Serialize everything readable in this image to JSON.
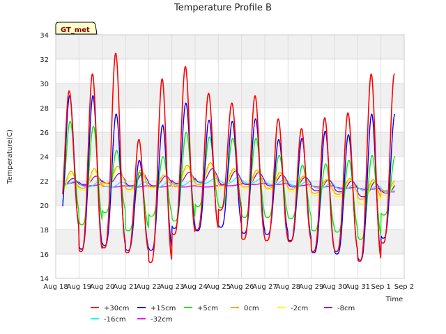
{
  "chart_data": {
    "type": "line",
    "title": "Temperature Profile B",
    "xlabel": "Time",
    "ylabel": "Temperature(C)",
    "badge": "GT_met",
    "ylim": [
      14,
      34
    ],
    "yticks": [
      14,
      16,
      18,
      20,
      22,
      24,
      26,
      28,
      30,
      32,
      34
    ],
    "xlim": [
      "2023-08-18",
      "2023-09-02"
    ],
    "xtick_labels": [
      "Aug 18",
      "Aug 19",
      "Aug 20",
      "Aug 21",
      "Aug 22",
      "Aug 23",
      "Aug 24",
      "Aug 25",
      "Aug 26",
      "Aug 27",
      "Aug 28",
      "Aug 29",
      "Aug 30",
      "Aug 31",
      "Sep 1",
      "Sep 2"
    ],
    "grid": true,
    "legend_position": "bottom",
    "series": [
      {
        "name": "+30cm",
        "color": "#ff0000",
        "x": [
          "2023-08-18",
          "2023-08-19",
          "2023-08-20",
          "2023-08-21",
          "2023-08-22",
          "2023-08-23",
          "2023-08-24",
          "2023-08-25",
          "2023-08-26",
          "2023-08-27",
          "2023-08-28",
          "2023-08-29",
          "2023-08-30",
          "2023-08-31",
          "2023-09-01"
        ],
        "min": [
          18.3,
          16.2,
          16.5,
          16.1,
          15.3,
          17.6,
          18.0,
          19.6,
          17.2,
          17.1,
          17.0,
          16.2,
          16.2,
          15.4,
          16.9
        ],
        "max": [
          29.4,
          30.8,
          32.5,
          25.4,
          30.4,
          31.4,
          29.2,
          28.4,
          29.0,
          27.1,
          26.3,
          27.2,
          27.6,
          30.8,
          30.8
        ]
      },
      {
        "name": "+15cm",
        "color": "#0000ff",
        "x": [
          "2023-08-18",
          "2023-08-19",
          "2023-08-20",
          "2023-08-21",
          "2023-08-22",
          "2023-08-23",
          "2023-08-24",
          "2023-08-25",
          "2023-08-26",
          "2023-08-27",
          "2023-08-28",
          "2023-08-29",
          "2023-08-30",
          "2023-08-31",
          "2023-09-01"
        ],
        "min": [
          17.9,
          16.4,
          16.7,
          16.3,
          16.3,
          18.1,
          17.9,
          18.2,
          17.7,
          17.6,
          17.1,
          16.1,
          16.0,
          15.5,
          17.3
        ],
        "max": [
          29.0,
          29.0,
          27.5,
          23.7,
          26.6,
          28.4,
          27.0,
          26.9,
          27.1,
          25.4,
          25.5,
          26.1,
          25.8,
          27.5,
          27.5
        ]
      },
      {
        "name": "+5cm",
        "color": "#00ee00",
        "x": [
          "2023-08-18",
          "2023-08-19",
          "2023-08-20",
          "2023-08-21",
          "2023-08-22",
          "2023-08-23",
          "2023-08-24",
          "2023-08-25",
          "2023-08-26",
          "2023-08-27",
          "2023-08-28",
          "2023-08-29",
          "2023-08-30",
          "2023-08-31",
          "2023-09-01"
        ],
        "min": [
          19.2,
          18.4,
          19.4,
          17.9,
          19.1,
          18.7,
          19.9,
          19.8,
          19.0,
          19.0,
          18.9,
          17.9,
          17.8,
          17.2,
          19.2
        ],
        "max": [
          26.9,
          26.5,
          24.5,
          22.7,
          24.0,
          26.0,
          25.6,
          25.5,
          25.5,
          24.1,
          23.3,
          23.4,
          23.7,
          24.1,
          24.1
        ]
      },
      {
        "name": "0cm",
        "color": "#ffa500",
        "x": [
          "2023-08-18",
          "2023-08-19",
          "2023-08-20",
          "2023-08-21",
          "2023-08-22",
          "2023-08-23",
          "2023-08-24",
          "2023-08-25",
          "2023-08-26",
          "2023-08-27",
          "2023-08-28",
          "2023-08-29",
          "2023-08-30",
          "2023-08-31",
          "2023-09-01"
        ],
        "min": [
          21.3,
          21.4,
          21.8,
          21.3,
          21.5,
          21.7,
          21.7,
          21.6,
          21.5,
          21.4,
          21.3,
          21.0,
          20.9,
          20.5,
          21.2
        ],
        "max": [
          22.8,
          23.0,
          23.2,
          22.9,
          22.5,
          23.3,
          23.5,
          23.0,
          22.9,
          22.7,
          22.4,
          22.1,
          22.2,
          22.1,
          22.1
        ]
      },
      {
        "name": "-2cm",
        "color": "#ffff00",
        "x": [
          "2023-08-18",
          "2023-08-19",
          "2023-08-20",
          "2023-08-21",
          "2023-08-22",
          "2023-08-23",
          "2023-08-24",
          "2023-08-25",
          "2023-08-26",
          "2023-08-27",
          "2023-08-28",
          "2023-08-29",
          "2023-08-30",
          "2023-08-31",
          "2023-09-01"
        ],
        "min": [
          21.1,
          21.2,
          21.6,
          21.2,
          21.4,
          21.5,
          21.6,
          21.4,
          21.4,
          21.3,
          21.1,
          20.8,
          20.7,
          20.1,
          20.8
        ],
        "max": [
          22.6,
          22.8,
          23.2,
          22.9,
          22.5,
          23.1,
          23.4,
          22.9,
          22.8,
          22.6,
          22.4,
          22.1,
          22.1,
          22.0,
          22.0
        ]
      },
      {
        "name": "-8cm",
        "color": "#9400d3",
        "x": [
          "2023-08-18",
          "2023-08-19",
          "2023-08-20",
          "2023-08-21",
          "2023-08-22",
          "2023-08-23",
          "2023-08-24",
          "2023-08-25",
          "2023-08-26",
          "2023-08-27",
          "2023-08-28",
          "2023-08-29",
          "2023-08-30",
          "2023-08-31",
          "2023-09-01"
        ],
        "min": [
          21.6,
          21.7,
          21.8,
          21.6,
          21.6,
          21.8,
          21.9,
          21.7,
          21.7,
          21.6,
          21.5,
          21.2,
          21.1,
          20.7,
          21.0
        ],
        "max": [
          22.2,
          22.4,
          22.6,
          22.6,
          22.4,
          22.7,
          23.0,
          22.8,
          22.7,
          22.5,
          22.3,
          22.1,
          22.0,
          21.9,
          21.9
        ]
      },
      {
        "name": "-16cm",
        "color": "#00ffff",
        "x": [
          "2023-08-18",
          "2023-08-19",
          "2023-08-20",
          "2023-08-21",
          "2023-08-22",
          "2023-08-23",
          "2023-08-24",
          "2023-08-25",
          "2023-08-26",
          "2023-08-27",
          "2023-08-28",
          "2023-08-29",
          "2023-08-30",
          "2023-08-31",
          "2023-09-01"
        ],
        "min": [
          21.7,
          21.5,
          21.5,
          21.5,
          21.5,
          21.6,
          21.8,
          21.8,
          21.8,
          21.7,
          21.6,
          21.4,
          21.3,
          21.2,
          21.1
        ],
        "max": [
          22.0,
          21.9,
          21.9,
          21.9,
          21.9,
          22.0,
          22.2,
          22.3,
          22.2,
          22.1,
          22.0,
          21.8,
          21.7,
          21.6,
          21.5
        ]
      },
      {
        "name": "-32cm",
        "color": "#ff00ff",
        "x": [
          "2023-08-18",
          "2023-08-19",
          "2023-08-20",
          "2023-08-21",
          "2023-08-22",
          "2023-08-23",
          "2023-08-24",
          "2023-08-25",
          "2023-08-26",
          "2023-08-27",
          "2023-08-28",
          "2023-08-29",
          "2023-08-30",
          "2023-08-31",
          "2023-09-01"
        ],
        "min": [
          21.8,
          21.6,
          21.5,
          21.5,
          21.5,
          21.5,
          21.5,
          21.6,
          21.7,
          21.7,
          21.6,
          21.5,
          21.4,
          21.3,
          21.1
        ],
        "max": [
          21.9,
          21.7,
          21.6,
          21.6,
          21.6,
          21.6,
          21.6,
          21.7,
          21.8,
          21.8,
          21.7,
          21.6,
          21.5,
          21.4,
          21.2
        ]
      }
    ]
  }
}
